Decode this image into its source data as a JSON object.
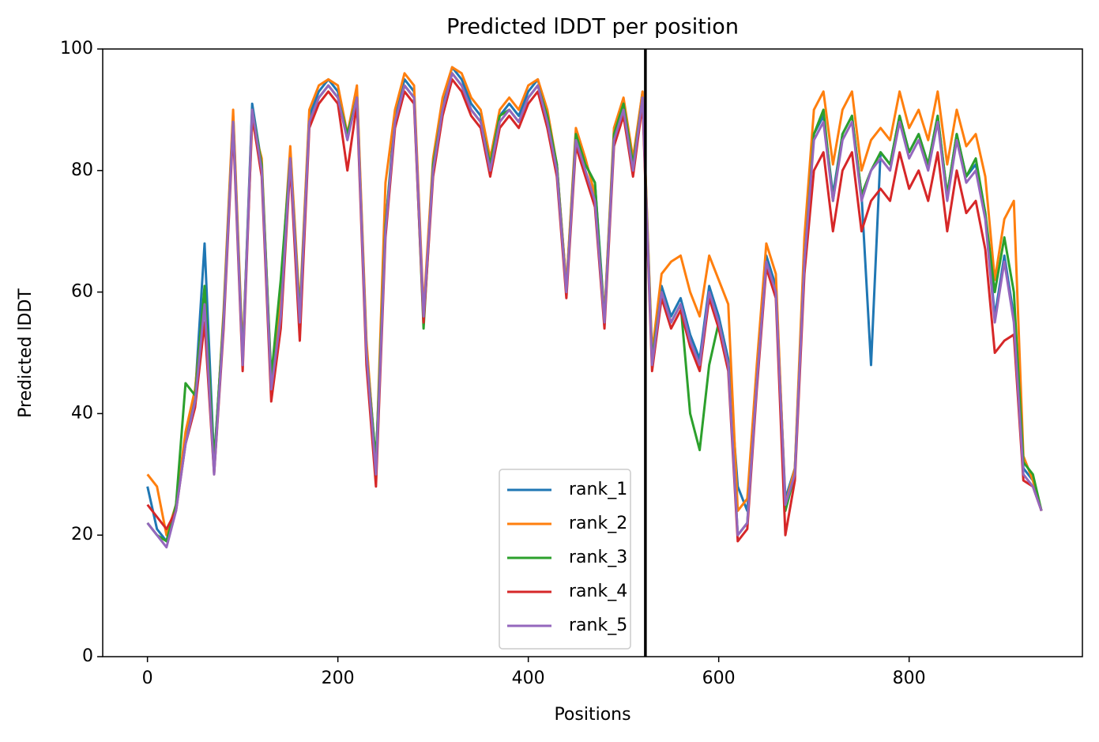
{
  "chart_data": {
    "type": "line",
    "title": "Predicted lDDT per position",
    "xlabel": "Positions",
    "ylabel": "Predicted lDDT",
    "x": [
      0,
      10,
      20,
      30,
      40,
      50,
      60,
      70,
      80,
      90,
      100,
      110,
      120,
      130,
      140,
      150,
      160,
      170,
      180,
      190,
      200,
      210,
      220,
      230,
      240,
      250,
      260,
      270,
      280,
      290,
      300,
      310,
      320,
      330,
      340,
      350,
      360,
      370,
      380,
      390,
      400,
      410,
      420,
      430,
      440,
      450,
      460,
      470,
      480,
      490,
      500,
      510,
      520,
      530,
      540,
      550,
      560,
      570,
      580,
      590,
      600,
      610,
      620,
      630,
      640,
      650,
      660,
      670,
      680,
      690,
      700,
      710,
      720,
      730,
      740,
      750,
      760,
      770,
      780,
      790,
      800,
      810,
      820,
      830,
      840,
      850,
      860,
      870,
      880,
      890,
      900,
      910,
      920,
      930,
      939
    ],
    "series": [
      {
        "name": "rank_1",
        "color": "#1f77b4",
        "values": [
          28,
          21,
          19,
          25,
          36,
          43,
          68,
          32,
          56,
          89,
          49,
          91,
          81,
          45,
          58,
          83,
          56,
          89,
          93,
          95,
          93,
          86,
          93,
          51,
          32,
          71,
          89,
          95,
          93,
          56,
          81,
          91,
          97,
          95,
          91,
          89,
          81,
          89,
          91,
          89,
          93,
          95,
          89,
          81,
          61,
          86,
          81,
          78,
          56,
          86,
          91,
          81,
          93,
          49,
          61,
          56,
          59,
          53,
          49,
          61,
          56,
          49,
          28,
          24,
          46,
          66,
          61,
          26,
          31,
          66,
          86,
          89,
          76,
          86,
          89,
          76,
          48,
          83,
          81,
          89,
          83,
          86,
          81,
          89,
          76,
          86,
          79,
          81,
          73,
          56,
          66,
          56,
          31,
          29,
          24
        ]
      },
      {
        "name": "rank_2",
        "color": "#ff7f0e",
        "values": [
          30,
          28,
          20,
          25,
          37,
          44,
          60,
          31,
          57,
          90,
          50,
          88,
          82,
          45,
          60,
          84,
          57,
          90,
          94,
          95,
          94,
          86,
          94,
          52,
          31,
          78,
          90,
          96,
          94,
          57,
          82,
          92,
          97,
          96,
          92,
          90,
          82,
          90,
          92,
          90,
          94,
          95,
          90,
          81,
          61,
          87,
          82,
          76,
          56,
          87,
          92,
          82,
          93,
          50,
          63,
          65,
          66,
          60,
          56,
          66,
          62,
          58,
          24,
          26,
          48,
          68,
          63,
          25,
          31,
          69,
          90,
          93,
          81,
          90,
          93,
          80,
          85,
          87,
          85,
          93,
          87,
          90,
          85,
          93,
          81,
          90,
          84,
          86,
          79,
          62,
          72,
          75,
          33,
          29,
          24
        ]
      },
      {
        "name": "rank_3",
        "color": "#2ca02c",
        "values": [
          22,
          20,
          19,
          25,
          45,
          43,
          61,
          32,
          56,
          88,
          49,
          90,
          81,
          46,
          62,
          82,
          56,
          88,
          92,
          94,
          92,
          86,
          92,
          50,
          32,
          71,
          88,
          94,
          92,
          54,
          81,
          90,
          96,
          94,
          90,
          88,
          81,
          89,
          90,
          88,
          92,
          94,
          89,
          81,
          60,
          86,
          81,
          78,
          55,
          86,
          91,
          81,
          92,
          49,
          60,
          55,
          58,
          40,
          34,
          48,
          55,
          48,
          20,
          22,
          45,
          65,
          60,
          24,
          30,
          65,
          86,
          90,
          75,
          86,
          89,
          76,
          80,
          83,
          81,
          89,
          83,
          86,
          81,
          89,
          76,
          86,
          79,
          82,
          73,
          60,
          69,
          60,
          32,
          30,
          24
        ]
      },
      {
        "name": "rank_4",
        "color": "#d62728",
        "values": [
          25,
          23,
          21,
          24,
          35,
          41,
          55,
          30,
          54,
          87,
          47,
          89,
          79,
          42,
          54,
          81,
          52,
          87,
          91,
          93,
          91,
          80,
          91,
          48,
          28,
          69,
          87,
          93,
          91,
          55,
          79,
          89,
          95,
          93,
          89,
          87,
          79,
          87,
          89,
          87,
          91,
          93,
          87,
          79,
          59,
          84,
          79,
          74,
          54,
          84,
          89,
          79,
          91,
          47,
          59,
          54,
          57,
          51,
          47,
          59,
          54,
          47,
          19,
          21,
          44,
          64,
          59,
          20,
          29,
          63,
          80,
          83,
          70,
          80,
          83,
          70,
          75,
          77,
          75,
          83,
          77,
          80,
          75,
          83,
          70,
          80,
          73,
          75,
          67,
          50,
          52,
          53,
          29,
          28,
          24
        ]
      },
      {
        "name": "rank_5",
        "color": "#9467bd",
        "values": [
          22,
          20,
          18,
          24,
          35,
          42,
          58,
          30,
          55,
          88,
          48,
          90,
          80,
          44,
          56,
          82,
          55,
          88,
          92,
          94,
          92,
          85,
          92,
          50,
          30,
          70,
          88,
          94,
          92,
          56,
          80,
          90,
          96,
          94,
          90,
          88,
          80,
          88,
          90,
          88,
          92,
          94,
          88,
          80,
          60,
          85,
          80,
          75,
          55,
          85,
          90,
          80,
          92,
          48,
          60,
          55,
          58,
          52,
          48,
          60,
          55,
          48,
          20,
          22,
          45,
          65,
          60,
          25,
          30,
          65,
          85,
          88,
          75,
          85,
          88,
          75,
          80,
          82,
          80,
          88,
          82,
          85,
          80,
          88,
          75,
          85,
          78,
          80,
          72,
          55,
          65,
          55,
          30,
          28,
          24
        ]
      }
    ],
    "vline": 523,
    "xlim": [
      -47,
      982
    ],
    "xticks": [
      0,
      200,
      400,
      600,
      800
    ],
    "ylim": [
      0,
      100
    ],
    "yticks": [
      0,
      20,
      40,
      60,
      80,
      100
    ],
    "legend": "lower center"
  }
}
